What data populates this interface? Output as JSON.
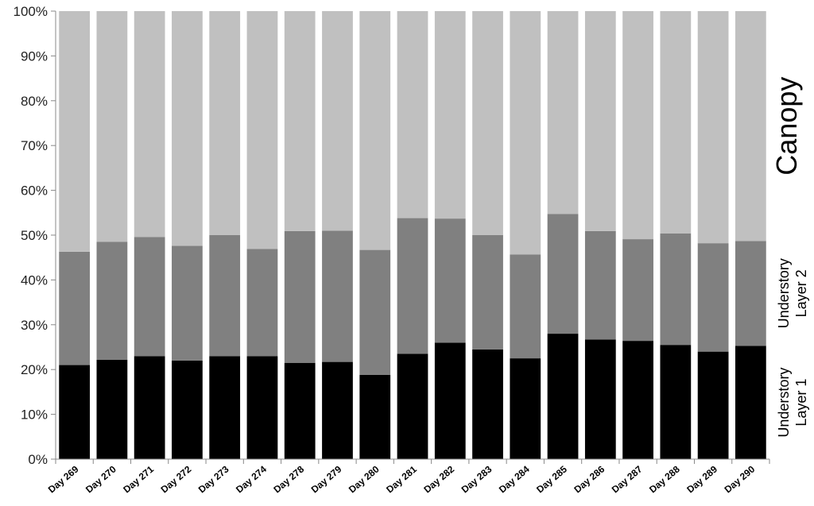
{
  "chart_data": {
    "type": "bar",
    "stacked": true,
    "percent_scale": true,
    "categories": [
      "Day 269",
      "Day 270",
      "Day 271",
      "Day 272",
      "Day 273",
      "Day 274",
      "Day 278",
      "Day 279",
      "Day 280",
      "Day 281",
      "Day 282",
      "Day 283",
      "Day 284",
      "Day 285",
      "Day 286",
      "Day 287",
      "Day 288",
      "Day 289",
      "Day 290"
    ],
    "series": [
      {
        "name_lines": [
          "Understory",
          "Layer 1"
        ],
        "color": "#000000",
        "values": [
          21,
          22.2,
          23,
          22,
          23,
          23,
          21.5,
          21.7,
          18.8,
          23.5,
          26,
          24.5,
          22.5,
          28,
          26.7,
          26.4,
          25.5,
          24,
          25.3
        ]
      },
      {
        "name_lines": [
          "Understory",
          "Layer 2"
        ],
        "color": "#808080",
        "values": [
          25.3,
          26.3,
          26.6,
          25.6,
          27,
          23.9,
          29.4,
          29.3,
          27.9,
          30.3,
          27.7,
          25.5,
          23.2,
          26.7,
          24.2,
          22.7,
          24.9,
          24.2,
          23.4
        ]
      },
      {
        "name_lines": [
          "Canopy"
        ],
        "color": "#c0c0c0",
        "values": [
          53.7,
          51.5,
          50.4,
          52.4,
          50,
          53.1,
          49.1,
          49,
          53.3,
          46.2,
          46.3,
          50,
          54.3,
          45.3,
          49.1,
          50.9,
          49.6,
          51.8,
          51.3
        ]
      }
    ],
    "y_tick_labels": [
      "0%",
      "10%",
      "20%",
      "30%",
      "40%",
      "50%",
      "60%",
      "70%",
      "80%",
      "90%",
      "100%"
    ],
    "ylim": [
      0,
      100
    ],
    "grid": false,
    "legend": "right-side labels"
  }
}
